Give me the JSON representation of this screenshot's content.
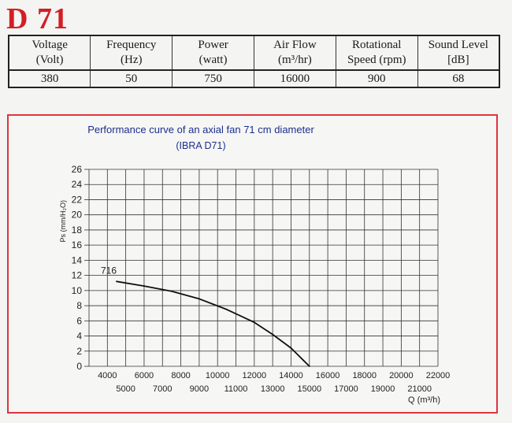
{
  "model": "D 71",
  "specs": {
    "headers": [
      [
        "Voltage",
        "(Volt)"
      ],
      [
        "Frequency",
        "(Hz)"
      ],
      [
        "Power",
        "(watt)"
      ],
      [
        "Air Flow",
        "(m³/hr)"
      ],
      [
        "Rotational",
        "Speed (rpm)"
      ],
      [
        "Sound Level",
        "[dB]"
      ]
    ],
    "values": [
      "380",
      "50",
      "750",
      "16000",
      "900",
      "68"
    ]
  },
  "colors": {
    "title_red": "#d21f26",
    "frame_red": "#e0343c",
    "chart_title_blue": "#1c2f8c"
  },
  "chart_data": {
    "type": "line",
    "title": "Performance curve of an axial fan 71 cm diameter",
    "subtitle": "(IBRA D71)",
    "ylabel": "Ps (mm/H₂O)",
    "xlabel": "Q (m³/h)",
    "ylim": [
      0,
      26
    ],
    "xlim": [
      3000,
      22000
    ],
    "yticks": [
      "0",
      "2",
      "4",
      "6",
      "8",
      "10",
      "12",
      "14",
      "16",
      "18",
      "20",
      "22",
      "24",
      "26"
    ],
    "xticks_upper": [
      "4000",
      "6000",
      "8000",
      "10000",
      "12000",
      "14000",
      "16000",
      "18000",
      "20000",
      "22000"
    ],
    "xticks_lower": [
      "5000",
      "7000",
      "9000",
      "11000",
      "13000",
      "15000",
      "17000",
      "19000",
      "21000"
    ],
    "grid": true,
    "series": [
      {
        "name": "716",
        "x": [
          4500,
          6000,
          7500,
          9000,
          10500,
          12000,
          13000,
          14000,
          15000
        ],
        "y": [
          11.2,
          10.6,
          9.9,
          8.9,
          7.5,
          5.8,
          4.2,
          2.4,
          0
        ]
      }
    ]
  }
}
